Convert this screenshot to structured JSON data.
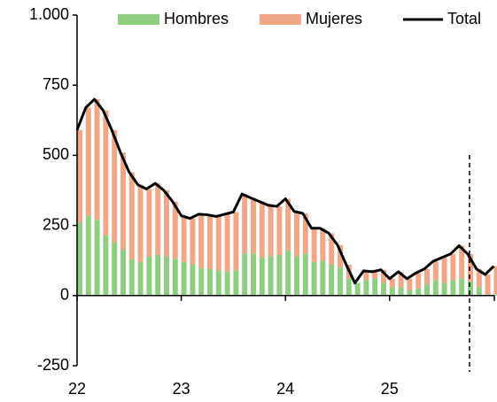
{
  "chart_data": {
    "type": "bar",
    "categories": [
      "22",
      null,
      null,
      null,
      null,
      null,
      null,
      null,
      null,
      null,
      null,
      null,
      "23",
      null,
      null,
      null,
      null,
      null,
      null,
      null,
      null,
      null,
      null,
      null,
      "24",
      null,
      null,
      null,
      null,
      null,
      null,
      null,
      null,
      null,
      null,
      null,
      "25",
      null,
      null,
      null,
      null,
      null,
      null,
      null,
      null,
      null,
      null,
      null,
      null
    ],
    "series": [
      {
        "name": "Hombres",
        "color": "#8fce80",
        "values": [
          260,
          285,
          270,
          215,
          190,
          165,
          130,
          120,
          140,
          145,
          140,
          130,
          120,
          110,
          100,
          95,
          90,
          85,
          90,
          150,
          150,
          135,
          140,
          145,
          160,
          140,
          150,
          120,
          125,
          110,
          100,
          60,
          45,
          55,
          60,
          45,
          30,
          30,
          20,
          25,
          40,
          55,
          45,
          55,
          60,
          50,
          30,
          5,
          5
        ]
      },
      {
        "name": "Mujeres",
        "color": "#f0a787",
        "values": [
          330,
          385,
          430,
          445,
          400,
          345,
          310,
          275,
          240,
          255,
          235,
          205,
          165,
          165,
          190,
          193,
          192,
          205,
          208,
          212,
          198,
          200,
          182,
          173,
          185,
          160,
          143,
          120,
          115,
          112,
          80,
          50,
          0,
          33,
          25,
          47,
          30,
          55,
          40,
          55,
          55,
          67,
          90,
          93,
          118,
          98,
          65,
          70,
          100
        ]
      },
      {
        "name": "Total",
        "color": "#000000",
        "type": "line",
        "values": [
          590,
          670,
          700,
          660,
          590,
          510,
          440,
          395,
          380,
          400,
          375,
          335,
          285,
          275,
          290,
          288,
          282,
          290,
          298,
          362,
          348,
          335,
          322,
          318,
          345,
          300,
          293,
          240,
          240,
          222,
          180,
          110,
          45,
          88,
          85,
          92,
          60,
          85,
          60,
          80,
          95,
          122,
          135,
          148,
          178,
          148,
          95,
          75,
          105
        ]
      }
    ],
    "ylim": [
      -250,
      1000
    ],
    "yticks": [
      {
        "value": 1000,
        "label": "1.000"
      },
      750,
      500,
      250,
      0,
      -250
    ],
    "legend": "top"
  }
}
